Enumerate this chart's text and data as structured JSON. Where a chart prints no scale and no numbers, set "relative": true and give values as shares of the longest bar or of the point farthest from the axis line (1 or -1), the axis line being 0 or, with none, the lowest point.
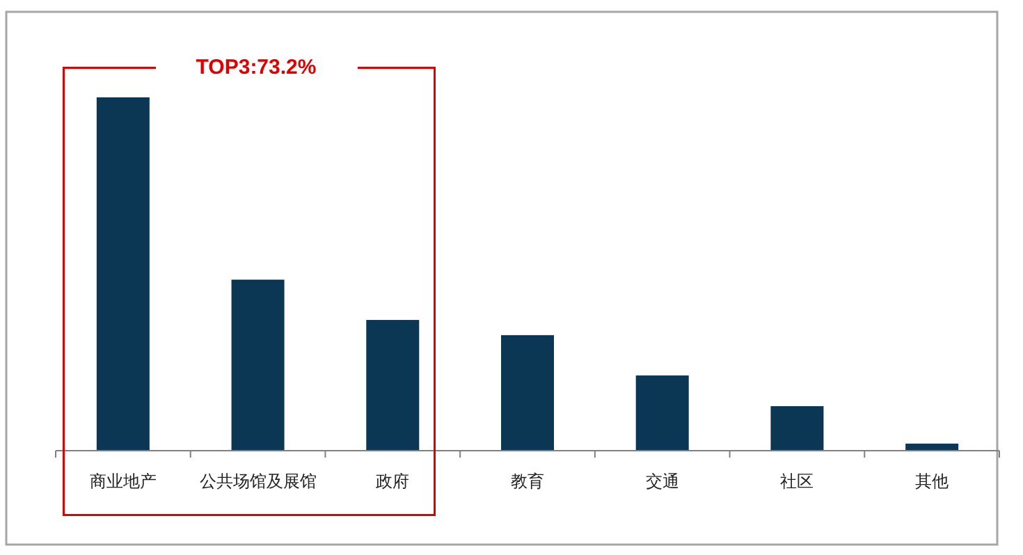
{
  "chart_data": {
    "type": "bar",
    "relative": true,
    "categories": [
      "商业地产",
      "公共场馆及展馆",
      "政府",
      "教育",
      "交通",
      "社区",
      "其他"
    ],
    "values": [
      1,
      0.484,
      0.37,
      0.327,
      0.213,
      0.126,
      0.02
    ],
    "color": "#0b3654",
    "annotations": [
      "TOP3:73.2%"
    ]
  }
}
